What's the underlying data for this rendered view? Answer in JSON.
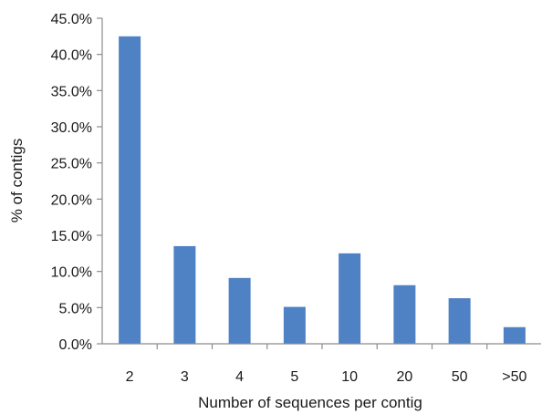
{
  "chart_data": {
    "type": "bar",
    "title": "",
    "xlabel": "Number of sequences per contig",
    "ylabel": "% of contigs",
    "categories": [
      "2",
      "3",
      "4",
      "5",
      "10",
      "20",
      "50",
      ">50"
    ],
    "values": [
      42.5,
      13.5,
      9.1,
      5.1,
      12.5,
      8.1,
      6.3,
      2.3
    ],
    "ylim": [
      0,
      45
    ],
    "yticks": [
      0,
      5,
      10,
      15,
      20,
      25,
      30,
      35,
      40,
      45
    ],
    "ytick_labels": [
      "0.0%",
      "5.0%",
      "10.0%",
      "15.0%",
      "20.0%",
      "25.0%",
      "30.0%",
      "35.0%",
      "40.0%",
      "45.0%"
    ],
    "grid": false,
    "legend": "none",
    "bar_color": "#4f81c5",
    "axis_color": "#8c8c8c"
  }
}
